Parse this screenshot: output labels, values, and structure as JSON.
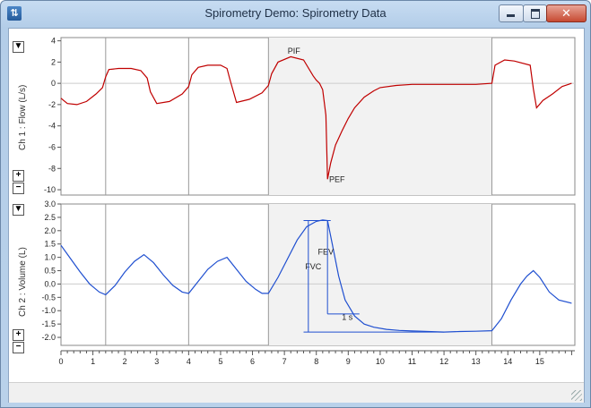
{
  "window": {
    "title": "Spirometry Demo: Spirometry Data",
    "close_glyph": "✕"
  },
  "icons": {
    "app": "chart-app-icon",
    "minimize": "minimize-icon",
    "maximize": "maximize-icon",
    "close": "close-icon",
    "channel_menu": "triangle-down-icon",
    "zoom_in": "plus-icon",
    "zoom_out": "minus-icon"
  },
  "colors": {
    "flow_trace": "#c00000",
    "volume_trace": "#1f4fd0",
    "selection_shade": "#f2f2f2",
    "grid": "#cccccc"
  },
  "chart_data": [
    {
      "type": "line",
      "channel": "Ch 1 : Flow (L/s)",
      "ylabel": "Ch 1 : Flow (L/s)",
      "ylim": [
        -10.5,
        4.3
      ],
      "yticks": [
        "4",
        "2",
        "0",
        "-2",
        "-4",
        "-6",
        "-8",
        "-10"
      ],
      "selection": [
        6.5,
        13.5
      ],
      "markers": [
        1.4,
        4.0,
        6.5,
        13.5
      ],
      "annotations": [
        {
          "text": "PIF",
          "x": 7.1,
          "y": 2.8
        },
        {
          "text": "PEF",
          "x": 8.4,
          "y": -9.3
        }
      ],
      "series": [
        {
          "x": [
            0,
            0.2,
            0.5,
            0.8,
            1.1,
            1.3,
            1.4,
            1.5,
            1.8,
            2.2,
            2.5,
            2.7,
            2.8,
            3.0,
            3.4,
            3.8,
            4.0,
            4.1,
            4.3,
            4.6,
            5.0,
            5.2,
            5.3,
            5.5,
            5.9,
            6.3,
            6.5,
            6.6,
            6.8,
            7.2,
            7.6,
            7.9,
            8.0,
            8.1,
            8.2,
            8.3,
            8.35,
            8.45,
            8.6,
            8.8,
            9.0,
            9.2,
            9.5,
            9.8,
            10.0,
            10.5,
            11.0,
            11.5,
            12.0,
            12.5,
            13.0,
            13.5,
            13.6,
            13.9,
            14.2,
            14.7,
            14.8,
            14.9,
            15.1,
            15.4,
            15.7,
            16.0
          ],
          "y": [
            -1.4,
            -1.9,
            -2.0,
            -1.7,
            -1.0,
            -0.4,
            0.6,
            1.3,
            1.4,
            1.4,
            1.2,
            0.5,
            -0.8,
            -1.9,
            -1.7,
            -1.0,
            -0.3,
            0.8,
            1.5,
            1.7,
            1.7,
            1.4,
            0.3,
            -1.8,
            -1.5,
            -0.9,
            -0.2,
            0.9,
            2.0,
            2.5,
            2.2,
            0.7,
            0.3,
            0.0,
            -0.6,
            -3.0,
            -9.0,
            -7.5,
            -5.8,
            -4.5,
            -3.3,
            -2.3,
            -1.3,
            -0.7,
            -0.4,
            -0.2,
            -0.1,
            -0.1,
            -0.1,
            -0.1,
            -0.1,
            0.0,
            1.7,
            2.2,
            2.1,
            1.7,
            -0.5,
            -2.3,
            -1.6,
            -1.0,
            -0.3,
            0.0
          ]
        }
      ]
    },
    {
      "type": "line",
      "channel": "Ch 2 : Volume (L)",
      "ylabel": "Ch 2 : Volume (L)",
      "ylim": [
        -2.3,
        3.0
      ],
      "yticks": [
        "3.0",
        "2.5",
        "2.0",
        "1.5",
        "1.0",
        "0.5",
        "0.0",
        "-0.5",
        "-1.0",
        "-1.5",
        "-2.0"
      ],
      "xlim": [
        0,
        16.1
      ],
      "xticks": [
        "0",
        "1",
        "2",
        "3",
        "4",
        "5",
        "6",
        "7",
        "8",
        "9",
        "10",
        "11",
        "12",
        "13",
        "14",
        "15"
      ],
      "selection": [
        6.5,
        13.5
      ],
      "markers": [
        1.4,
        4.0,
        6.5,
        13.5
      ],
      "annotations": [
        {
          "text": "FVC",
          "x": 7.65,
          "y": 0.55
        },
        {
          "text": "FEV",
          "x": 8.05,
          "y": 1.1
        },
        {
          "text": "1 s",
          "x": 8.8,
          "y": -1.35
        }
      ],
      "measurements": {
        "fvc_top": 2.38,
        "fvc_bottom": -1.8,
        "fev_start_x": 8.35,
        "fev_value_level": -1.12,
        "one_second_end_x": 9.35
      },
      "series": [
        {
          "x": [
            0,
            0.3,
            0.6,
            0.9,
            1.2,
            1.4,
            1.7,
            2.0,
            2.3,
            2.6,
            2.9,
            3.2,
            3.5,
            3.8,
            4.0,
            4.3,
            4.6,
            4.9,
            5.2,
            5.5,
            5.8,
            6.1,
            6.3,
            6.5,
            6.8,
            7.1,
            7.4,
            7.7,
            8.0,
            8.2,
            8.35,
            8.5,
            8.7,
            8.9,
            9.2,
            9.5,
            9.8,
            10.2,
            10.6,
            11.0,
            11.5,
            12.0,
            12.5,
            13.0,
            13.5,
            13.8,
            14.1,
            14.4,
            14.6,
            14.8,
            15.0,
            15.3,
            15.6,
            16.0
          ],
          "y": [
            1.45,
            0.95,
            0.45,
            0.0,
            -0.3,
            -0.4,
            -0.05,
            0.45,
            0.85,
            1.1,
            0.8,
            0.35,
            -0.05,
            -0.3,
            -0.35,
            0.1,
            0.55,
            0.85,
            1.0,
            0.55,
            0.1,
            -0.2,
            -0.35,
            -0.35,
            0.25,
            0.95,
            1.65,
            2.15,
            2.35,
            2.4,
            2.38,
            1.5,
            0.3,
            -0.6,
            -1.2,
            -1.5,
            -1.62,
            -1.7,
            -1.74,
            -1.76,
            -1.78,
            -1.8,
            -1.78,
            -1.77,
            -1.75,
            -1.3,
            -0.6,
            0.0,
            0.3,
            0.5,
            0.25,
            -0.3,
            -0.6,
            -0.72
          ]
        }
      ]
    }
  ]
}
